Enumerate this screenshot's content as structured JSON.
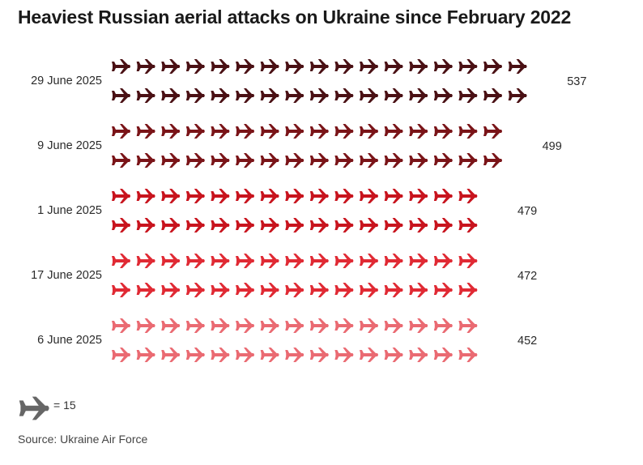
{
  "title": "Heaviest Russian aerial attacks on Ukraine since February 2022",
  "chart_data": {
    "type": "bar",
    "title": "Heaviest Russian aerial attacks on Ukraine since February 2022",
    "categories": [
      "29 June 2025",
      "9 June 2025",
      "1 June 2025",
      "17 June 2025",
      "6 June 2025"
    ],
    "values": [
      537,
      499,
      479,
      472,
      452
    ],
    "value_labels": [
      "537",
      "499",
      "479",
      "472",
      "452"
    ],
    "unit_per_icon": 15,
    "colors": [
      "#4a1014",
      "#7a1418",
      "#c8141e",
      "#e02a34",
      "#ea6a72"
    ],
    "legend_text": "= 15",
    "source": "Source: Ukraine Air Force"
  }
}
